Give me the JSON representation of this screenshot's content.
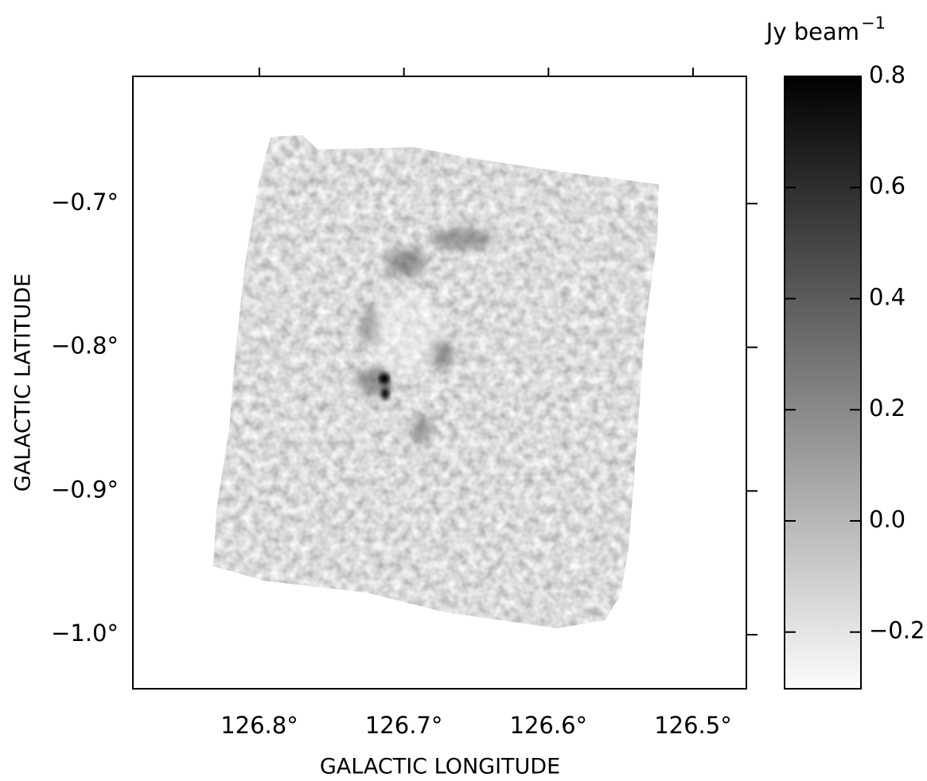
{
  "chart_data": {
    "type": "image",
    "xlabel": "GALACTIC LONGITUDE",
    "ylabel": "GALACTIC LATITUDE",
    "xlim": [
      126.8875,
      126.4631
    ],
    "ylim": [
      -1.0376,
      -0.6115
    ],
    "xticks": [
      {
        "value": 126.8,
        "label": "126.8°"
      },
      {
        "value": 126.7,
        "label": "126.7°"
      },
      {
        "value": 126.6,
        "label": "126.6°"
      },
      {
        "value": 126.5,
        "label": "126.5°"
      }
    ],
    "yticks": [
      {
        "value": -0.7,
        "label": "−0.7°"
      },
      {
        "value": -0.8,
        "label": "−0.8°"
      },
      {
        "value": -0.9,
        "label": "−0.9°"
      },
      {
        "value": -1.0,
        "label": "−1.0°"
      }
    ],
    "colormap": "gray_r",
    "colorbar": {
      "label": "Jy beam",
      "label_exponent": "−1",
      "clim": [
        -0.302,
        0.8
      ],
      "ticks": [
        0.8,
        0.6,
        0.4,
        0.2,
        {
          "value": 0,
          "label": "0.0"
        },
        {
          "value": -0.2,
          "label": "−0.2"
        }
      ]
    }
  }
}
